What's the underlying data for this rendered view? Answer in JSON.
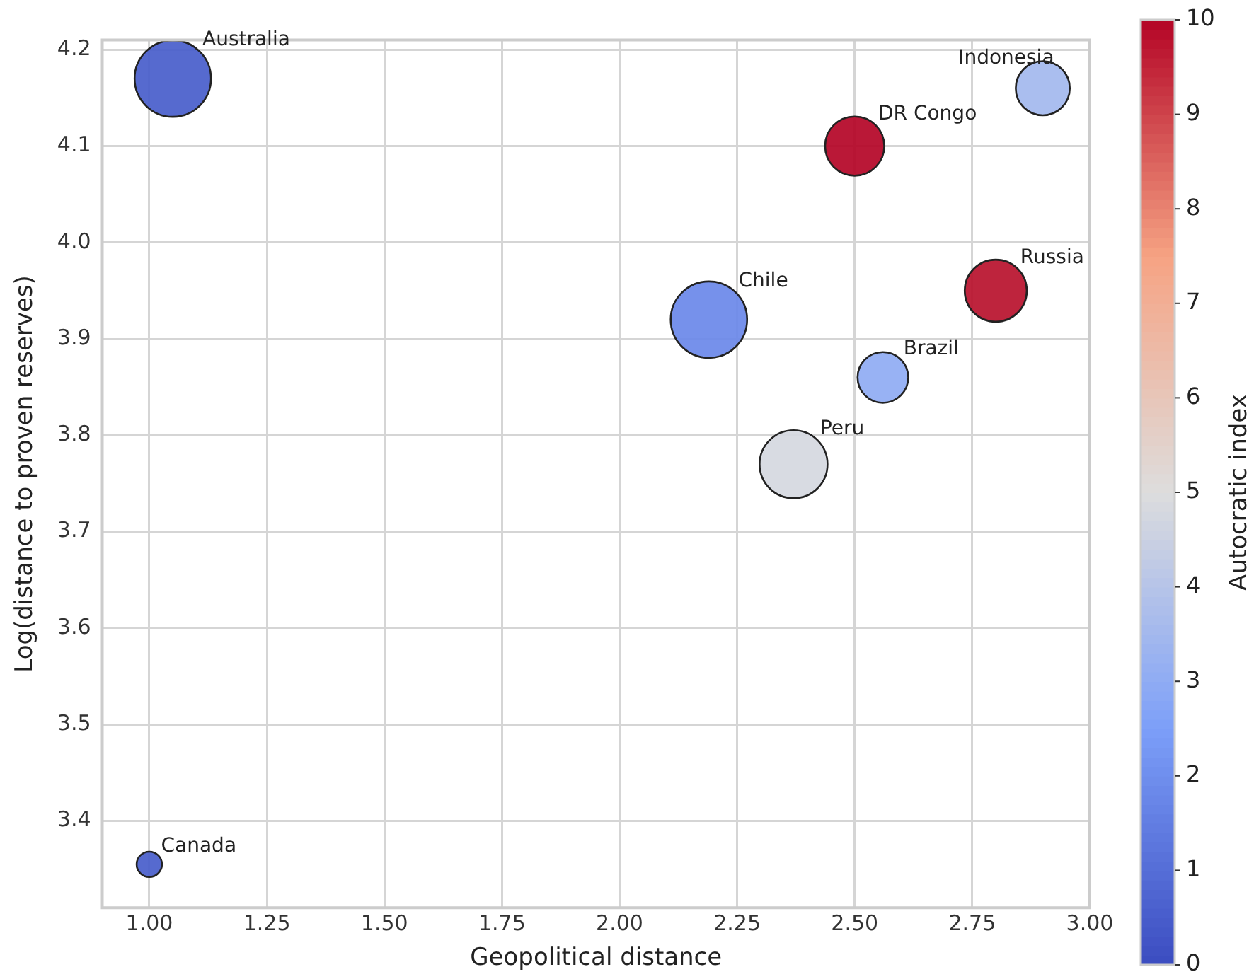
{
  "chart_data": {
    "type": "bubble",
    "xlabel": "Geopolitical distance",
    "ylabel": "Log(distance to proven reserves)",
    "clabel": "Autocratic index",
    "x": [
      1.05,
      2.9,
      2.5,
      2.8,
      2.19,
      2.56,
      2.37,
      1.0
    ],
    "values": [
      4.17,
      4.16,
      4.1,
      3.95,
      3.92,
      3.86,
      3.77,
      3.355
    ],
    "sizes": [
      1,
      0.5,
      0.6,
      0.66,
      1,
      0.44,
      0.79,
      0.11
    ],
    "cvalues": [
      0.5,
      3.5,
      10,
      9.8,
      1.8,
      3,
      4.8,
      0.5
    ],
    "clim": [
      0,
      10
    ],
    "cticks": [
      0,
      1,
      2,
      3,
      4,
      5,
      6,
      7,
      8,
      9,
      10
    ],
    "xlim": [
      0.9,
      3.0
    ],
    "xticks": [
      {
        "value": 1,
        "label": "1.00"
      },
      1.25,
      {
        "value": 1.5,
        "label": "1.50"
      },
      1.75,
      {
        "value": 2,
        "label": "2.00"
      },
      2.25,
      {
        "value": 2.5,
        "label": "2.50"
      },
      2.75,
      {
        "value": 3,
        "label": "3.00"
      }
    ],
    "ylim": [
      3.31,
      4.21
    ],
    "yticks": [
      3.4,
      3.5,
      3.6,
      3.7,
      3.8,
      3.9,
      {
        "value": 4,
        "label": "4.0"
      },
      4.1,
      4.2
    ],
    "grid": true,
    "marker": "circle",
    "annotations": [
      {
        "text": "Australia",
        "x": 1.05,
        "y": 4.17
      },
      {
        "text": "Indonesia",
        "x": 2.9,
        "y": 4.16
      },
      {
        "text": "DR Congo",
        "x": 2.5,
        "y": 4.1
      },
      {
        "text": "Russia",
        "x": 2.8,
        "y": 3.95
      },
      {
        "text": "Chile",
        "x": 2.19,
        "y": 3.92
      },
      {
        "text": "Brazil",
        "x": 2.56,
        "y": 3.86
      },
      {
        "text": "Peru",
        "x": 2.37,
        "y": 3.77
      },
      {
        "text": "Canada",
        "x": 1.0,
        "y": 3.355
      }
    ]
  }
}
